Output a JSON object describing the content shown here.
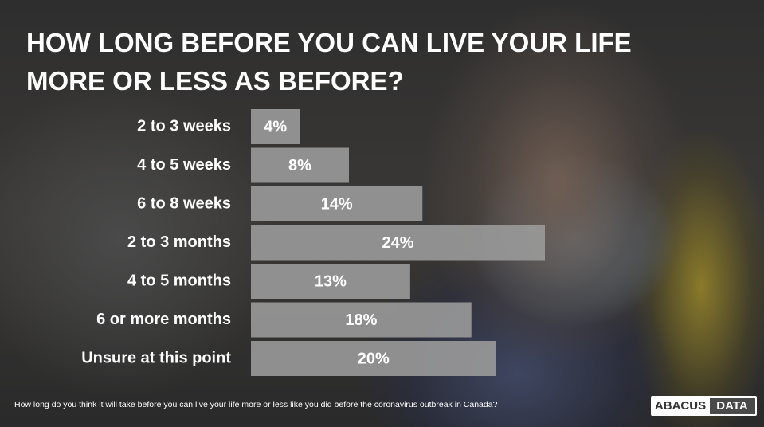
{
  "chart_data": {
    "type": "bar",
    "title": "HOW LONG BEFORE YOU CAN LIVE YOUR LIFE MORE OR LESS AS BEFORE?",
    "categories": [
      "2 to 3 weeks",
      "4 to 5 weeks",
      "6 to 8 weeks",
      "2 to 3 months",
      "4 to 5 months",
      "6 or more months",
      "Unsure at this point"
    ],
    "values": [
      4,
      8,
      14,
      24,
      13,
      18,
      20
    ],
    "value_labels": [
      "4%",
      "8%",
      "14%",
      "24%",
      "13%",
      "18%",
      "20%"
    ],
    "color": "#9a9a9a",
    "footnote": "How long do you think it will take before you can live your life more or less like you did before the coronavirus outbreak in Canada?"
  },
  "logo": {
    "left": "ABACUS",
    "right": "DATA"
  }
}
